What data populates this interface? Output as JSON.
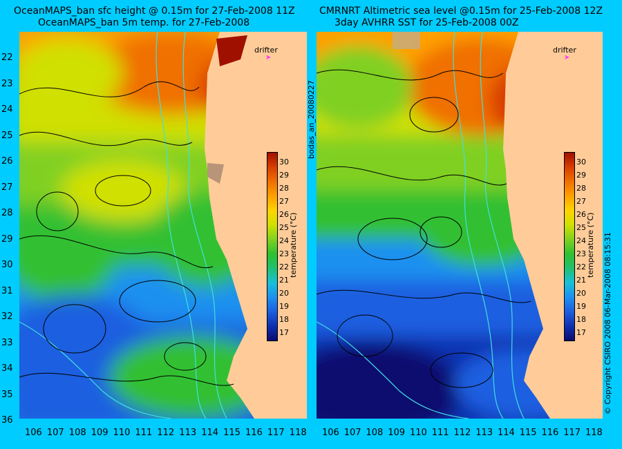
{
  "left_panel": {
    "title_line1": "OceanMAPS_ban sfc height @ 0.15m for 27-Feb-2008 11Z",
    "title_line2": "OceanMAPS_ban 5m temp. for 27-Feb-2008",
    "drifter_label": "drifter",
    "colorbar_label": "temperature (°C)"
  },
  "right_panel": {
    "title_line1": "CMRNRT Altimetric sea level  @0.15m  for 25-Feb-2008 12Z",
    "title_line2": "3day AVHRR SST for 25-Feb-2008 00Z",
    "drifter_label": "drifter",
    "colorbar_label": "temperature (°C)"
  },
  "run_label": "bodas_an_20080227",
  "copyright": "© Copyright CSIRO 2008    06-Mar-2008 08:15:31",
  "axes": {
    "longitude_ticks": [
      "106",
      "107",
      "108",
      "109",
      "110",
      "111",
      "112",
      "113",
      "114",
      "115",
      "116",
      "117",
      "118"
    ],
    "latitude_ticks": [
      "22",
      "23",
      "24",
      "25",
      "26",
      "27",
      "28",
      "29",
      "30",
      "31",
      "32",
      "33",
      "34",
      "35",
      "36"
    ]
  },
  "colorbar": {
    "ticks": [
      "17",
      "18",
      "19",
      "20",
      "21",
      "22",
      "23",
      "24",
      "25",
      "26",
      "27",
      "28",
      "29",
      "30"
    ],
    "range": [
      16.5,
      30.8
    ],
    "colors": [
      "#0a0a70",
      "#1030b0",
      "#1c5ee0",
      "#1e90f0",
      "#18c0d8",
      "#20c070",
      "#30c030",
      "#80d020",
      "#d0e000",
      "#ffd400",
      "#ffa000",
      "#f07000",
      "#d83e00",
      "#a01000"
    ]
  },
  "colors": {
    "background": "#00ccff",
    "land": "#ffcc99",
    "contour": "#000000",
    "bathymetry": "#40e0e0",
    "drifter": "#ff33ff"
  }
}
